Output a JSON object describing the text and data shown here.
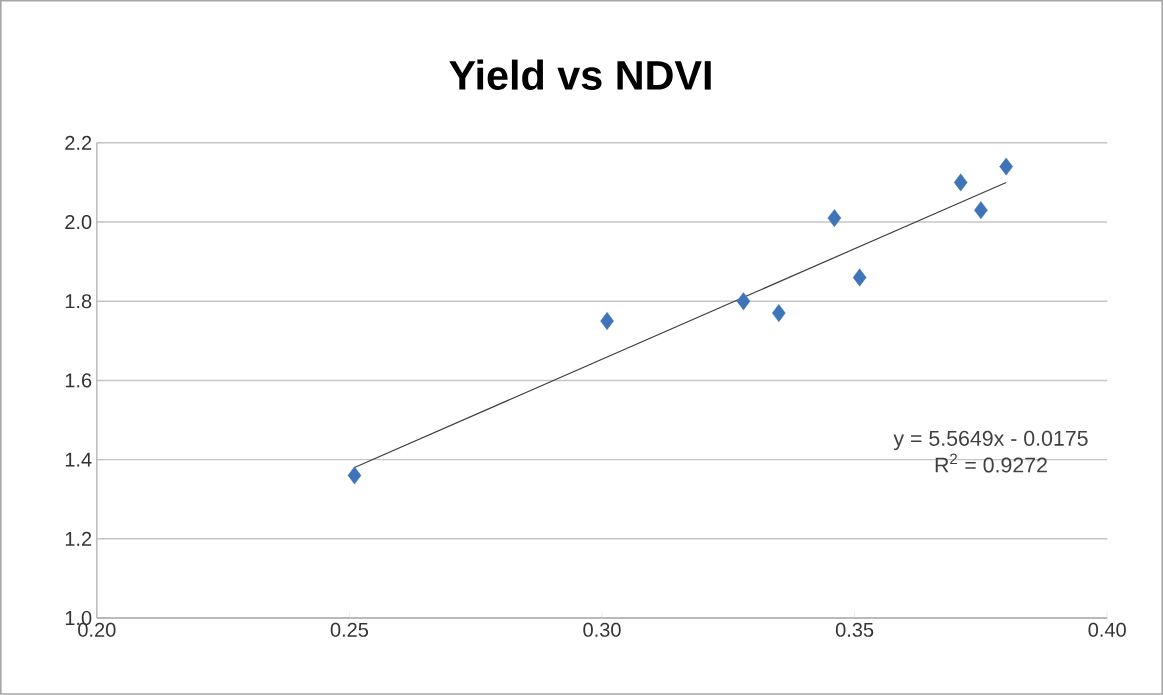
{
  "chart_data": {
    "type": "scatter",
    "title": "Yield vs NDVI",
    "series": [
      {
        "x": [
          0.251,
          0.301,
          0.328,
          0.335,
          0.346,
          0.351,
          0.371,
          0.375,
          0.38
        ],
        "values": [
          1.36,
          1.75,
          1.8,
          1.77,
          2.01,
          1.86,
          2.1,
          2.03,
          2.14
        ],
        "color": "#3f74b8",
        "marker": "diamond"
      },
      {
        "type": "line",
        "x": [
          0.251,
          0.38
        ],
        "values": [
          1.38,
          2.1
        ],
        "color": "#404040",
        "marker": "none"
      }
    ],
    "xlim": [
      0.2,
      0.4
    ],
    "ylim": [
      1.0,
      2.2
    ],
    "xticks": [
      {
        "value": 0.2,
        "label": "0.20"
      },
      {
        "value": 0.25,
        "label": "0.25"
      },
      {
        "value": 0.3,
        "label": "0.30"
      },
      {
        "value": 0.35,
        "label": "0.35"
      },
      {
        "value": 0.4,
        "label": "0.40"
      }
    ],
    "yticks": [
      {
        "value": 1.0,
        "label": "1.0"
      },
      {
        "value": 1.2,
        "label": "1.2"
      },
      {
        "value": 1.4,
        "label": "1.4"
      },
      {
        "value": 1.6,
        "label": "1.6"
      },
      {
        "value": 1.8,
        "label": "1.8"
      },
      {
        "value": 2.0,
        "label": "2.0"
      },
      {
        "value": 2.2,
        "label": "2.2"
      }
    ],
    "grid": "y",
    "annotations": [
      "y = 5.5649x - 0.0175",
      "R$^{2}$ = 0.9272"
    ]
  }
}
